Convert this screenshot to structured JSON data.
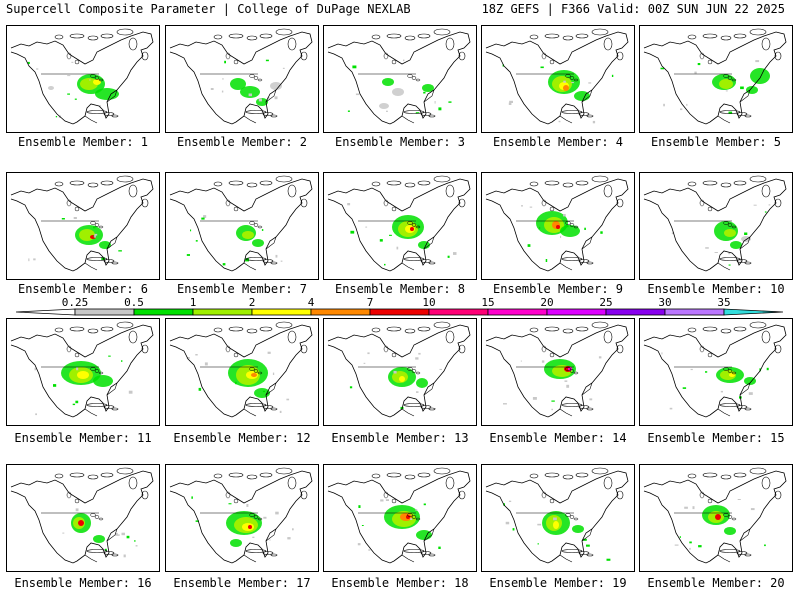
{
  "header": {
    "left": "Supercell Composite Parameter | College of DuPage NEXLAB",
    "right": "18Z GEFS | F366 Valid: 00Z SUN JUN 22 2025"
  },
  "legend": {
    "ticks": [
      "0.25",
      "0.5",
      "1",
      "2",
      "4",
      "7",
      "10",
      "15",
      "20",
      "25",
      "30",
      "35"
    ],
    "colors": [
      "#ffffff",
      "#c8c8c8",
      "#00e000",
      "#a0f000",
      "#ffff00",
      "#ff8800",
      "#ee0000",
      "#ff0077",
      "#ff00cc",
      "#dd00ff",
      "#8800ee",
      "#bb77ff",
      "#33dddd"
    ]
  },
  "members": [
    {
      "label": "Ensemble Member: 1"
    },
    {
      "label": "Ensemble Member: 2"
    },
    {
      "label": "Ensemble Member: 3"
    },
    {
      "label": "Ensemble Member: 4"
    },
    {
      "label": "Ensemble Member: 5"
    },
    {
      "label": "Ensemble Member: 6"
    },
    {
      "label": "Ensemble Member: 7"
    },
    {
      "label": "Ensemble Member: 8"
    },
    {
      "label": "Ensemble Member: 9"
    },
    {
      "label": "Ensemble Member: 10"
    },
    {
      "label": "Ensemble Member: 11"
    },
    {
      "label": "Ensemble Member: 12"
    },
    {
      "label": "Ensemble Member: 13"
    },
    {
      "label": "Ensemble Member: 14"
    },
    {
      "label": "Ensemble Member: 15"
    },
    {
      "label": "Ensemble Member: 16"
    },
    {
      "label": "Ensemble Member: 17"
    },
    {
      "label": "Ensemble Member: 18"
    },
    {
      "label": "Ensemble Member: 19"
    },
    {
      "label": "Ensemble Member: 20"
    }
  ]
}
